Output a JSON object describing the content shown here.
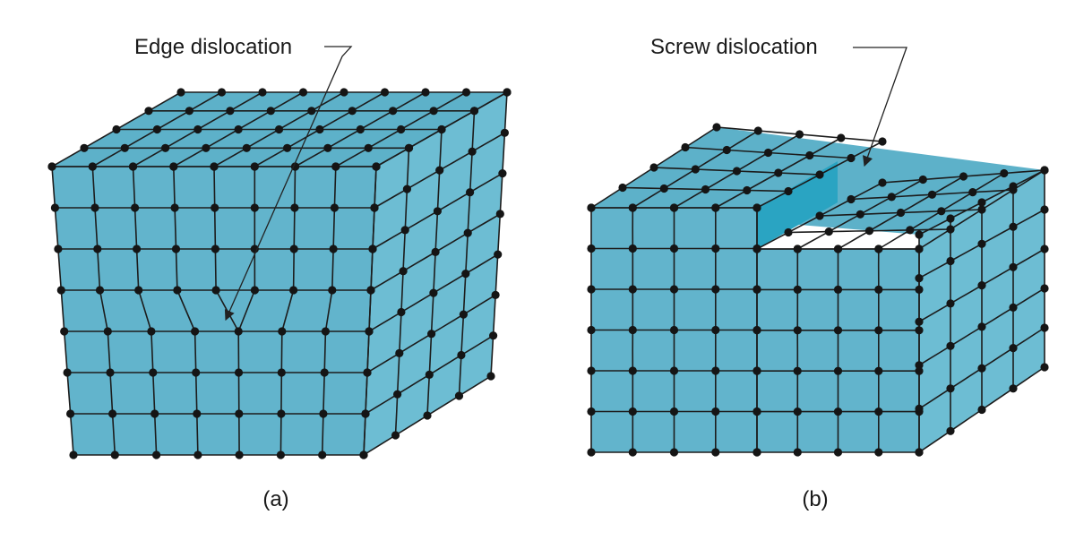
{
  "colors": {
    "front_face": "#62b4cc",
    "top_face": "#5db1c9",
    "side_face": "#6dbdd3",
    "step_face": "#2aa4c2",
    "edge": "#1c1c1c",
    "atom": "#151515"
  },
  "figures": [
    {
      "id": "a",
      "callout": "Edge dislocation",
      "caption": "(a)"
    },
    {
      "id": "b",
      "callout": "Screw dislocation",
      "caption": "(b)"
    }
  ]
}
